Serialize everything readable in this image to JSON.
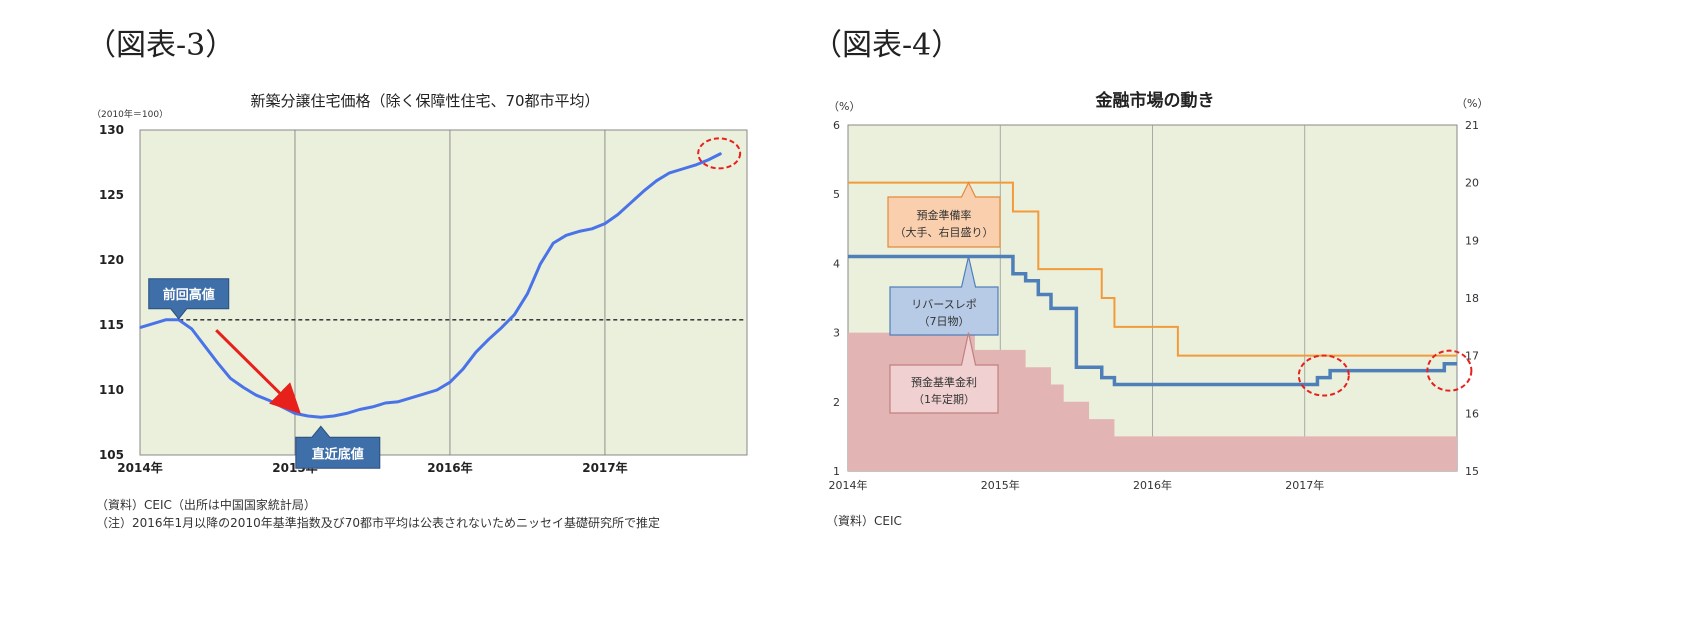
{
  "figures": [
    {
      "label": "（図表-3）"
    },
    {
      "label": "（図表-4）"
    }
  ],
  "chart_data": [
    {
      "type": "line",
      "title": "新築分譲住宅価格（除く保障性住宅、70都市平均）",
      "ylabel": "（2010年＝100）",
      "ylim": [
        105,
        130
      ],
      "yticks": [
        "105",
        "110",
        "115",
        "120",
        "125",
        "130"
      ],
      "xticks": [
        "2014年",
        "2015年",
        "2016年",
        "2017年"
      ],
      "grid": "vertical lines at year boundaries",
      "background": "#ebf0dc",
      "line_color": "#4a73e8",
      "series": [
        {
          "x": [
            "2014-01",
            "2014-02",
            "2014-03",
            "2014-04",
            "2014-05",
            "2014-06",
            "2014-07",
            "2014-08",
            "2014-09",
            "2014-10",
            "2014-11",
            "2014-12",
            "2015-01",
            "2015-02",
            "2015-03",
            "2015-04",
            "2015-05",
            "2015-06",
            "2015-07",
            "2015-08",
            "2015-09",
            "2015-10",
            "2015-11",
            "2015-12",
            "2016-01",
            "2016-02",
            "2016-03",
            "2016-04",
            "2016-05",
            "2016-06",
            "2016-07",
            "2016-08",
            "2016-09",
            "2016-10",
            "2016-11",
            "2016-12",
            "2017-01",
            "2017-02",
            "2017-03",
            "2017-04",
            "2017-05",
            "2017-06",
            "2017-07",
            "2017-08",
            "2017-09",
            "2017-10"
          ],
          "values": [
            114.8,
            115.1,
            115.4,
            115.4,
            114.7,
            113.4,
            112.1,
            110.9,
            110.2,
            109.6,
            109.2,
            108.7,
            108.2,
            108.0,
            107.9,
            108.0,
            108.2,
            108.5,
            108.7,
            109.0,
            109.1,
            109.4,
            109.7,
            110.0,
            110.6,
            111.6,
            112.9,
            113.9,
            114.8,
            115.8,
            117.4,
            119.7,
            121.3,
            121.9,
            122.2,
            122.4,
            122.8,
            123.5,
            124.4,
            125.3,
            126.1,
            126.7,
            127.0,
            127.3,
            127.7,
            128.2
          ]
        }
      ],
      "reference_line": {
        "value": 115.4,
        "style": "dashed",
        "color": "#222222"
      },
      "annotations": [
        {
          "text": "前回高値",
          "fill": "#3f6fa8"
        },
        {
          "text": "直近底値",
          "fill": "#3f6fa8"
        }
      ],
      "arrow_color": "#e8201c",
      "highlight_color": "#e8201c",
      "source": "（資料）CEIC（出所は中国国家統計局）",
      "note": "（注）2016年1月以降の2010年基準指数及び70都市平均は公表されないためニッセイ基礎研究所で推定"
    },
    {
      "type": "line",
      "title": "金融市場の動き",
      "ylabel_left": "（%）",
      "ylabel_right": "（%）",
      "ylim_left": [
        1,
        6
      ],
      "ylim_right": [
        15,
        21
      ],
      "yticks_left": [
        "1",
        "2",
        "3",
        "4",
        "5",
        "6"
      ],
      "yticks_right": [
        "15",
        "16",
        "17",
        "18",
        "19",
        "20",
        "21"
      ],
      "xticks": [
        "2014年",
        "2015年",
        "2016年",
        "2017年"
      ],
      "grid": "vertical lines at year boundaries",
      "background": "#ebf0dc",
      "series": [
        {
          "name": "預金準備率（大手、右目盛り）",
          "axis": "right",
          "color": "#f39a3a",
          "steps": [
            [
              "2014-01",
              20.0
            ],
            [
              "2015-02",
              19.5
            ],
            [
              "2015-04",
              18.5
            ],
            [
              "2015-09",
              18.0
            ],
            [
              "2015-10",
              17.5
            ],
            [
              "2016-03",
              17.0
            ],
            [
              "2017-12",
              17.0
            ]
          ]
        },
        {
          "name": "リバースレポ（7日物）",
          "axis": "left",
          "color": "#4f7fb8",
          "steps": [
            [
              "2014-01",
              4.1
            ],
            [
              "2015-02",
              3.85
            ],
            [
              "2015-03",
              3.75
            ],
            [
              "2015-04",
              3.55
            ],
            [
              "2015-05",
              3.35
            ],
            [
              "2015-07",
              2.5
            ],
            [
              "2015-09",
              2.35
            ],
            [
              "2015-10",
              2.25
            ],
            [
              "2017-02",
              2.35
            ],
            [
              "2017-03",
              2.45
            ],
            [
              "2017-12",
              2.55
            ]
          ]
        },
        {
          "name": "預金基準金利（1年定期）",
          "axis": "left",
          "type": "area",
          "color": "#e3b4b4",
          "steps": [
            [
              "2014-01",
              3.0
            ],
            [
              "2014-11",
              2.75
            ],
            [
              "2015-03",
              2.5
            ],
            [
              "2015-05",
              2.25
            ],
            [
              "2015-06",
              2.0
            ],
            [
              "2015-08",
              1.75
            ],
            [
              "2015-10",
              1.5
            ],
            [
              "2017-12",
              1.5
            ]
          ]
        }
      ],
      "highlight_color": "#e8201c",
      "source": "（資料）CEIC"
    }
  ]
}
